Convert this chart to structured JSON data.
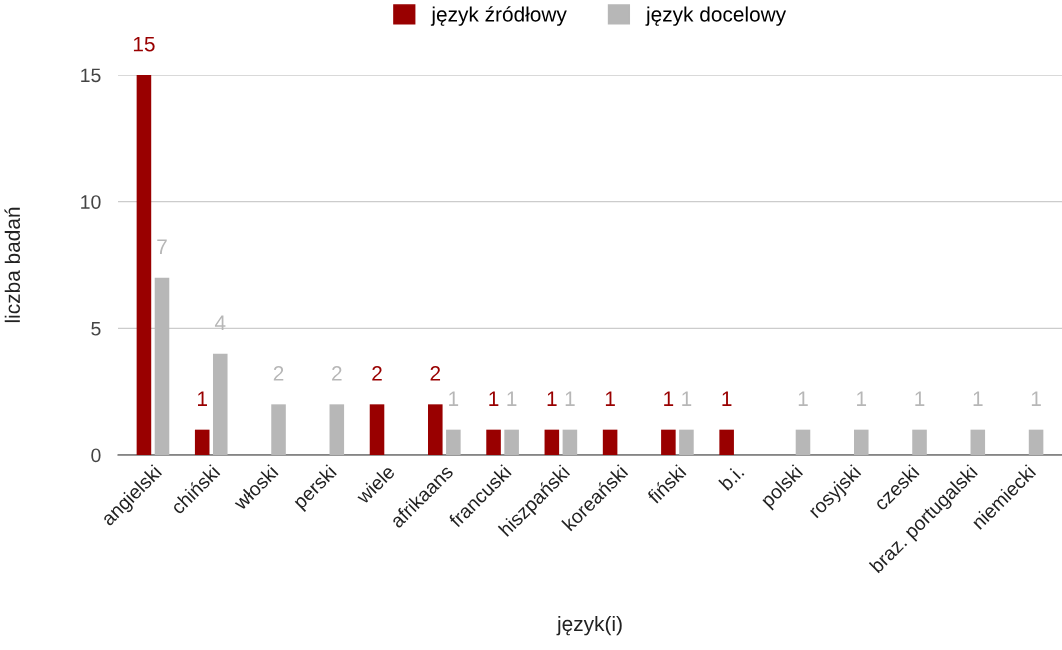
{
  "chart_data": {
    "type": "bar",
    "xlabel": "język(i)",
    "ylabel": "liczba badań",
    "categories": [
      "angielski",
      "chiński",
      "włoski",
      "perski",
      "wiele",
      "afrikaans",
      "francuski",
      "hiszpański",
      "koreański",
      "fiński",
      "b.i.",
      "polski",
      "rosyjski",
      "czeski",
      "braz. portugalski",
      "niemiecki"
    ],
    "series": [
      {
        "name": "język źródłowy",
        "color": "#990000",
        "values": [
          15,
          1,
          null,
          null,
          2,
          2,
          1,
          1,
          1,
          1,
          1,
          null,
          null,
          null,
          null,
          null
        ]
      },
      {
        "name": "język docelowy",
        "color": "#b7b7b7",
        "values": [
          7,
          4,
          2,
          2,
          null,
          1,
          1,
          1,
          null,
          1,
          null,
          1,
          1,
          1,
          1,
          1
        ]
      }
    ],
    "ylim": [
      0,
      15
    ],
    "yticks": [
      0,
      5,
      10,
      15
    ],
    "grid": "y",
    "legend": "top",
    "data_labels": true
  }
}
